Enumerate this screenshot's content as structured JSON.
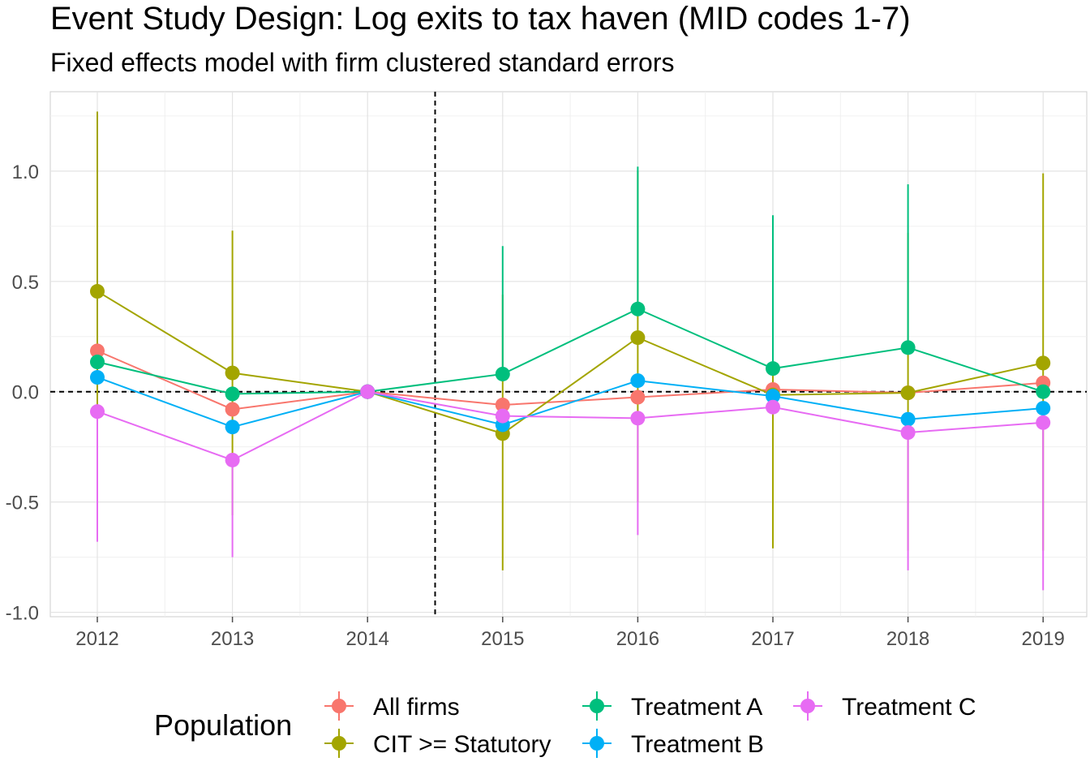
{
  "chart_data": {
    "type": "line",
    "title": "Event Study Design: Log exits to tax haven (MID codes 1-7)",
    "subtitle": "Fixed effects model with firm clustered standard errors",
    "xlabel": "",
    "ylabel": "",
    "categories": [
      "2012",
      "2013",
      "2014",
      "2015",
      "2016",
      "2017",
      "2018",
      "2019"
    ],
    "ylim": [
      -1.02,
      1.36
    ],
    "yticks": [
      "-1.0",
      "-0.5",
      "0.0",
      "0.5",
      "1.0"
    ],
    "ytick_values": [
      -1.0,
      -0.5,
      0.0,
      0.5,
      1.0
    ],
    "reference_lines": {
      "horizontal_y": 0.0,
      "vertical_x_between": [
        "2014",
        "2015"
      ]
    },
    "grid": true,
    "legend": {
      "title": "Population",
      "position": "bottom"
    },
    "series": [
      {
        "name": "All firms",
        "color": "#F8766D",
        "values": [
          0.185,
          -0.08,
          0.0,
          -0.06,
          -0.025,
          0.01,
          -0.005,
          0.04
        ],
        "lower": [
          null,
          null,
          0.0,
          null,
          null,
          null,
          null,
          null
        ],
        "upper": [
          null,
          null,
          0.0,
          null,
          null,
          null,
          null,
          null
        ]
      },
      {
        "name": "CIT >= Statutory",
        "color": "#A3A500",
        "values": [
          0.455,
          0.085,
          0.0,
          -0.19,
          0.245,
          -0.015,
          -0.005,
          0.13
        ],
        "lower": [
          -0.36,
          -0.56,
          0.0,
          -0.81,
          -0.5,
          -0.71,
          -0.72,
          -0.72
        ],
        "upper": [
          1.27,
          0.73,
          0.0,
          0.44,
          1.0,
          0.69,
          0.72,
          0.99
        ]
      },
      {
        "name": "Treatment A",
        "color": "#00BF7D",
        "values": [
          0.135,
          -0.01,
          0.0,
          0.08,
          0.375,
          0.105,
          0.2,
          0.0
        ],
        "lower": [
          null,
          null,
          0.0,
          null,
          null,
          null,
          null,
          null
        ],
        "upper": [
          null,
          null,
          0.0,
          0.66,
          1.02,
          0.8,
          0.94,
          null
        ]
      },
      {
        "name": "Treatment B",
        "color": "#00B0F6",
        "values": [
          0.065,
          -0.16,
          0.0,
          -0.15,
          0.05,
          -0.02,
          -0.125,
          -0.075
        ],
        "lower": [
          null,
          null,
          0.0,
          null,
          null,
          null,
          null,
          null
        ],
        "upper": [
          null,
          null,
          0.0,
          null,
          null,
          null,
          null,
          null
        ]
      },
      {
        "name": "Treatment C",
        "color": "#E76BF3",
        "values": [
          -0.09,
          -0.31,
          0.0,
          -0.11,
          -0.12,
          -0.07,
          -0.185,
          -0.14
        ],
        "lower": [
          -0.68,
          -0.75,
          0.0,
          null,
          -0.65,
          null,
          -0.81,
          -0.9
        ],
        "upper": [
          null,
          null,
          0.0,
          null,
          null,
          null,
          null,
          null
        ]
      }
    ]
  }
}
